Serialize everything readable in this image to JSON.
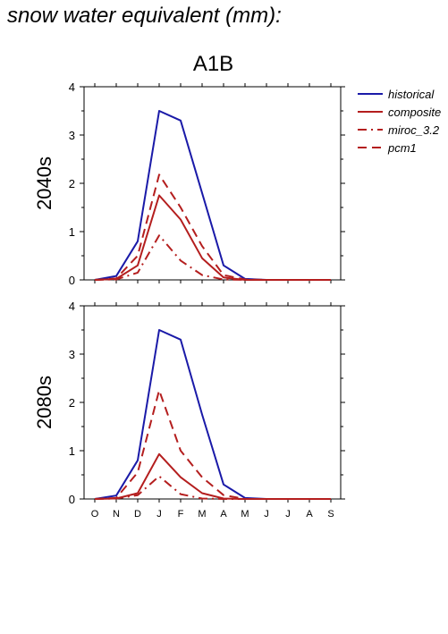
{
  "title": "snow water equivalent (mm):",
  "scenario": "A1B",
  "colors": {
    "historical": "#1a1aa8",
    "future": "#b41e1e"
  },
  "chart_data": [
    {
      "type": "line",
      "row_label": "2040s",
      "categories": [
        "O",
        "N",
        "D",
        "J",
        "F",
        "M",
        "A",
        "M",
        "J",
        "J",
        "A",
        "S"
      ],
      "ylim": [
        0,
        4
      ],
      "yticks": [
        0,
        1,
        2,
        3,
        4
      ],
      "grid": false,
      "legend": "right",
      "series": [
        {
          "name": "historical",
          "style": "solid",
          "color": "#1a1aa8",
          "values": [
            0,
            0.08,
            0.8,
            3.5,
            3.3,
            1.8,
            0.3,
            0.02,
            0,
            0,
            0,
            0
          ]
        },
        {
          "name": "composite",
          "style": "solid",
          "color": "#b41e1e",
          "values": [
            0,
            0.02,
            0.3,
            1.75,
            1.25,
            0.45,
            0.05,
            0,
            0,
            0,
            0,
            0
          ]
        },
        {
          "name": "miroc_3.2",
          "style": "dashdot",
          "color": "#b41e1e",
          "values": [
            0,
            0.01,
            0.15,
            0.92,
            0.4,
            0.1,
            0.01,
            0,
            0,
            0,
            0,
            0
          ]
        },
        {
          "name": "pcm1",
          "style": "dashed",
          "color": "#b41e1e",
          "values": [
            0,
            0.03,
            0.5,
            2.18,
            1.5,
            0.7,
            0.1,
            0.01,
            0,
            0,
            0,
            0
          ]
        }
      ]
    },
    {
      "type": "line",
      "row_label": "2080s",
      "categories": [
        "O",
        "N",
        "D",
        "J",
        "F",
        "M",
        "A",
        "M",
        "J",
        "J",
        "A",
        "S"
      ],
      "ylim": [
        0,
        4
      ],
      "yticks": [
        0,
        1,
        2,
        3,
        4
      ],
      "grid": false,
      "series": [
        {
          "name": "historical",
          "style": "solid",
          "color": "#1a1aa8",
          "values": [
            0,
            0.07,
            0.8,
            3.5,
            3.3,
            1.75,
            0.3,
            0.02,
            0,
            0,
            0,
            0
          ]
        },
        {
          "name": "composite",
          "style": "solid",
          "color": "#b41e1e",
          "values": [
            0,
            0.01,
            0.12,
            0.93,
            0.45,
            0.12,
            0.01,
            0,
            0,
            0,
            0,
            0
          ]
        },
        {
          "name": "miroc_3.2",
          "style": "dashdot",
          "color": "#b41e1e",
          "values": [
            0,
            0.01,
            0.08,
            0.47,
            0.1,
            0.01,
            0,
            0,
            0,
            0,
            0,
            0
          ]
        },
        {
          "name": "pcm1",
          "style": "dashed",
          "color": "#b41e1e",
          "values": [
            0,
            0.02,
            0.55,
            2.25,
            1.0,
            0.45,
            0.08,
            0,
            0,
            0,
            0,
            0
          ]
        }
      ]
    }
  ]
}
